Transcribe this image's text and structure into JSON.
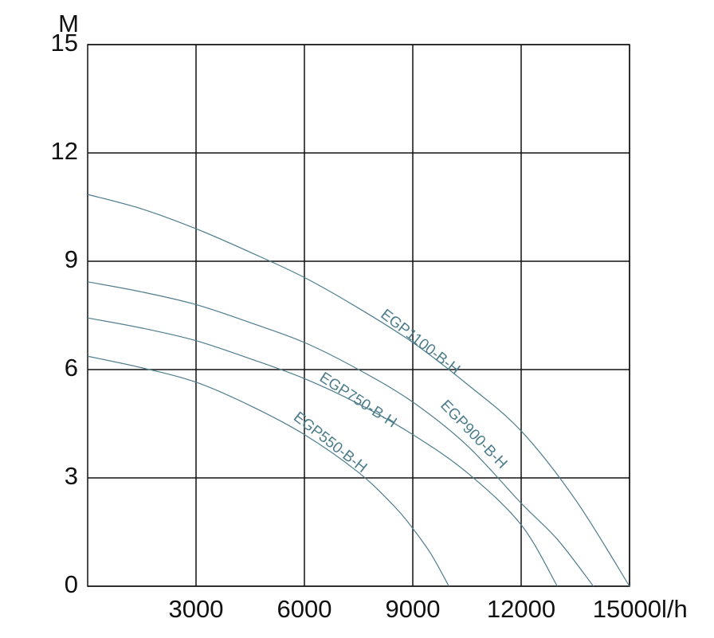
{
  "chart_data": {
    "type": "line",
    "ylabel": "M",
    "xlabel": "l/h",
    "xlim": [
      0,
      15000
    ],
    "ylim": [
      0,
      15
    ],
    "xticks": [
      3000,
      6000,
      9000,
      12000,
      15000
    ],
    "yticks": [
      0,
      3,
      6,
      9,
      12,
      15
    ],
    "grid": true,
    "series": [
      {
        "name": "EGP1100-B-H",
        "color": "#4e7d8c",
        "x": [
          0,
          1500,
          3000,
          4500,
          6000,
          7500,
          9000,
          10500,
          12000,
          13500,
          15000
        ],
        "values": [
          10.85,
          10.45,
          9.9,
          9.25,
          8.55,
          7.7,
          6.75,
          5.6,
          4.3,
          2.4,
          0
        ]
      },
      {
        "name": "EGP900-B-H",
        "color": "#4e7d8c",
        "x": [
          0,
          1500,
          3000,
          4500,
          6000,
          7500,
          9000,
          10500,
          12000,
          13000,
          14000
        ],
        "values": [
          8.43,
          8.15,
          7.8,
          7.3,
          6.75,
          6.0,
          5.1,
          3.9,
          2.3,
          1.3,
          0
        ]
      },
      {
        "name": "EGP750-B-H",
        "color": "#4e7d8c",
        "x": [
          0,
          1500,
          3000,
          4500,
          6000,
          7500,
          9000,
          10500,
          12000,
          13000
        ],
        "values": [
          7.43,
          7.15,
          6.8,
          6.3,
          5.75,
          5.05,
          4.2,
          3.15,
          1.7,
          0
        ]
      },
      {
        "name": "EGP550-B-H",
        "color": "#4e7d8c",
        "x": [
          0,
          1500,
          3000,
          4500,
          6000,
          7500,
          8500,
          9000,
          9500,
          10000
        ],
        "values": [
          6.37,
          6.05,
          5.65,
          5.0,
          4.2,
          3.15,
          2.2,
          1.6,
          0.9,
          0
        ]
      }
    ]
  }
}
